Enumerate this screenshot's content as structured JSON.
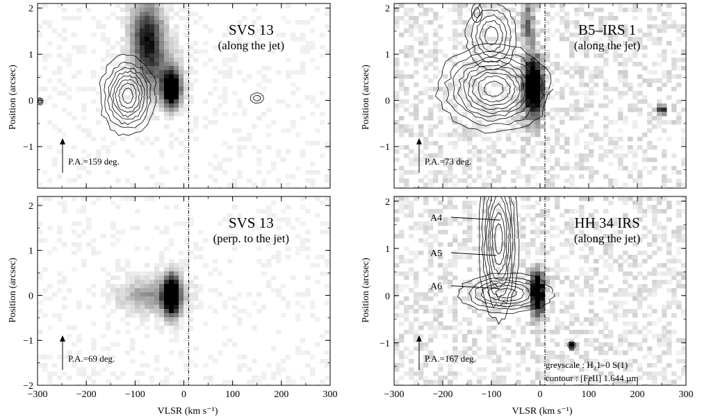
{
  "figure": {
    "xlabel": "VLSR (km s⁻¹)",
    "ylabel": "Position (arcsec)",
    "legend": {
      "greyscale": "greyscale : H₂1–0 S(1)",
      "contour": "contour    : [FeII] 1.644 µm"
    }
  },
  "chart_data": [
    {
      "type": "heatmap",
      "panel": "top-left",
      "title": "SVS 13",
      "subtitle": "(along the jet)",
      "pa_label": "P.A.=159 deg.",
      "xlim": [
        -300,
        300
      ],
      "ylim": [
        -1.9,
        2.1
      ],
      "xticks": [
        -300,
        -200,
        -100,
        0,
        100,
        200,
        300
      ],
      "yticks": [
        -1,
        0,
        1,
        2
      ],
      "show_x_ticklabels": false,
      "vline_x": 10,
      "greyscale_features": [
        {
          "v": -25,
          "pos": 0.25,
          "sv": 12,
          "sp": 0.25,
          "amp": 1.0
        },
        {
          "v": -75,
          "pos": 1.4,
          "sv": 22,
          "sp": 0.5,
          "amp": 0.55
        },
        {
          "v": -55,
          "pos": 0.6,
          "sv": 30,
          "sp": 0.45,
          "amp": 0.25
        }
      ],
      "contour_features": [
        {
          "v": -115,
          "pos": 0.1,
          "sv": 28,
          "sp": 0.42,
          "levels": 8
        },
        {
          "v": -295,
          "pos": -0.02,
          "sv": 4,
          "sp": 0.05,
          "levels": 3
        },
        {
          "v": 150,
          "pos": 0.05,
          "sv": 10,
          "sp": 0.08,
          "levels": 2
        }
      ]
    },
    {
      "type": "heatmap",
      "panel": "top-right",
      "title": "B5–IRS 1",
      "subtitle": "(along the jet)",
      "pa_label": "P.A.=73 deg.",
      "xlim": [
        -300,
        300
      ],
      "ylim": [
        -1.9,
        2.1
      ],
      "xticks": [
        -300,
        -200,
        -100,
        0,
        100,
        200,
        300
      ],
      "yticks": [
        -1,
        0,
        1,
        2
      ],
      "show_x_ticklabels": false,
      "vline_x": 10,
      "greyscale_features": [
        {
          "v": -15,
          "pos": 0.3,
          "sv": 14,
          "sp": 0.45,
          "amp": 1.0
        },
        {
          "v": -25,
          "pos": 1.7,
          "sv": 10,
          "sp": 0.3,
          "amp": 0.35
        },
        {
          "v": 250,
          "pos": -0.2,
          "sv": 6,
          "sp": 0.06,
          "amp": 0.7
        }
      ],
      "contour_features": [
        {
          "v": -95,
          "pos": 0.25,
          "sv": 55,
          "sp": 0.45,
          "levels": 9
        },
        {
          "v": -100,
          "pos": 1.4,
          "sv": 28,
          "sp": 0.4,
          "levels": 5
        },
        {
          "v": -130,
          "pos": 1.9,
          "sv": 8,
          "sp": 0.15,
          "levels": 2
        }
      ]
    },
    {
      "type": "heatmap",
      "panel": "bottom-left",
      "title": "SVS 13",
      "subtitle": "(perp. to the jet)",
      "pa_label": "P.A.=69 deg.",
      "xlim": [
        -300,
        300
      ],
      "ylim": [
        -2.0,
        2.2
      ],
      "xticks": [
        -300,
        -200,
        -100,
        0,
        100,
        200,
        300
      ],
      "yticks": [
        -2,
        -1,
        0,
        1,
        2
      ],
      "show_x_ticklabels": true,
      "vline_x": 10,
      "greyscale_features": [
        {
          "v": -25,
          "pos": 0.0,
          "sv": 12,
          "sp": 0.3,
          "amp": 1.0
        },
        {
          "v": -65,
          "pos": 0.0,
          "sv": 45,
          "sp": 0.25,
          "amp": 0.25
        }
      ],
      "contour_features": []
    },
    {
      "type": "heatmap",
      "panel": "bottom-right",
      "title": "HH 34 IRS",
      "subtitle": "(along the jet)",
      "pa_label": "P.A.=167 deg.",
      "xlim": [
        -300,
        300
      ],
      "ylim": [
        -1.9,
        2.1
      ],
      "xticks": [
        -300,
        -200,
        -100,
        0,
        100,
        200,
        300
      ],
      "yticks": [
        -1,
        0,
        1,
        2
      ],
      "show_x_ticklabels": true,
      "vline_x": 10,
      "greyscale_features": [
        {
          "v": -5,
          "pos": 0.05,
          "sv": 10,
          "sp": 0.3,
          "amp": 1.0
        },
        {
          "v": 65,
          "pos": -1.05,
          "sv": 5,
          "sp": 0.05,
          "amp": 0.9
        }
      ],
      "contour_features": [
        {
          "v": -85,
          "pos": 1.2,
          "sv": 20,
          "sp": 0.85,
          "levels": 8
        },
        {
          "v": -70,
          "pos": 0.05,
          "sv": 50,
          "sp": 0.22,
          "levels": 6
        },
        {
          "v": 65,
          "pos": -1.05,
          "sv": 5,
          "sp": 0.05,
          "levels": 3
        }
      ],
      "knots": [
        {
          "label": "A4",
          "v": -82,
          "pos": 1.6
        },
        {
          "label": "A5",
          "v": -90,
          "pos": 0.85
        },
        {
          "label": "A6",
          "v": -85,
          "pos": 0.15
        }
      ]
    }
  ]
}
